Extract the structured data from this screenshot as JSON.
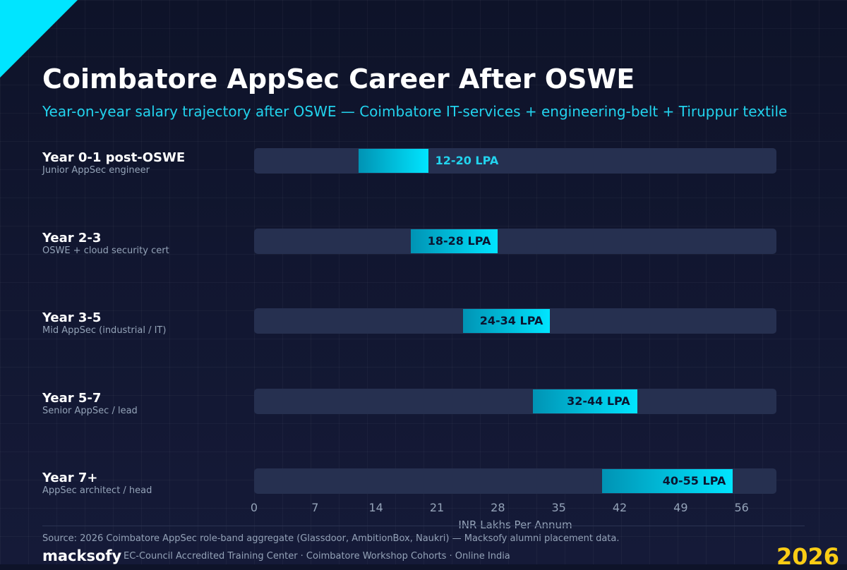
{
  "header": {
    "title": "Coimbatore AppSec Career After OSWE",
    "subtitle": "Year-on-year salary trajectory after OSWE — Coimbatore IT-services + engineering-belt + Tiruppur textile"
  },
  "chart_data": {
    "type": "bar",
    "orientation": "horizontal-range",
    "title": "Coimbatore AppSec Career After OSWE",
    "subtitle": "Year-on-year salary trajectory after OSWE — Coimbatore IT-services + engineering-belt + Tiruppur textile",
    "xlabel": "INR Lakhs Per Annum",
    "ylabel": "",
    "xlim": [
      0,
      60
    ],
    "x_ticks": [
      0,
      7,
      14,
      21,
      28,
      35,
      42,
      49,
      56
    ],
    "grid": true,
    "rows": [
      {
        "label": "Year 0-1 post-OSWE",
        "sublabel": "Junior AppSec engineer",
        "low": 12,
        "high": 20,
        "value_label": "12-20 LPA"
      },
      {
        "label": "Year 2-3",
        "sublabel": "OSWE + cloud security cert",
        "low": 18,
        "high": 28,
        "value_label": "18-28 LPA"
      },
      {
        "label": "Year 3-5",
        "sublabel": "Mid AppSec (industrial / IT)",
        "low": 24,
        "high": 34,
        "value_label": "24-34 LPA"
      },
      {
        "label": "Year 5-7",
        "sublabel": "Senior AppSec / lead",
        "low": 32,
        "high": 44,
        "value_label": "32-44 LPA"
      },
      {
        "label": "Year 7+",
        "sublabel": "AppSec architect / head",
        "low": 40,
        "high": 55,
        "value_label": "40-55 LPA"
      }
    ]
  },
  "footer": {
    "source": "Source: 2026 Coimbatore AppSec role-band aggregate (Glassdoor, AmbitionBox, Naukri) — Macksofy alumni placement data.",
    "brand": "macksofy",
    "tagline": "EC-Council Accredited Training Center · Coimbatore Workshop Cohorts · Online India",
    "year": "2026"
  },
  "colors": {
    "accent": "#00e5ff",
    "accent_dark": "#0093b4",
    "background": "#0e1329",
    "track": "#263050",
    "year": "#facc15"
  }
}
